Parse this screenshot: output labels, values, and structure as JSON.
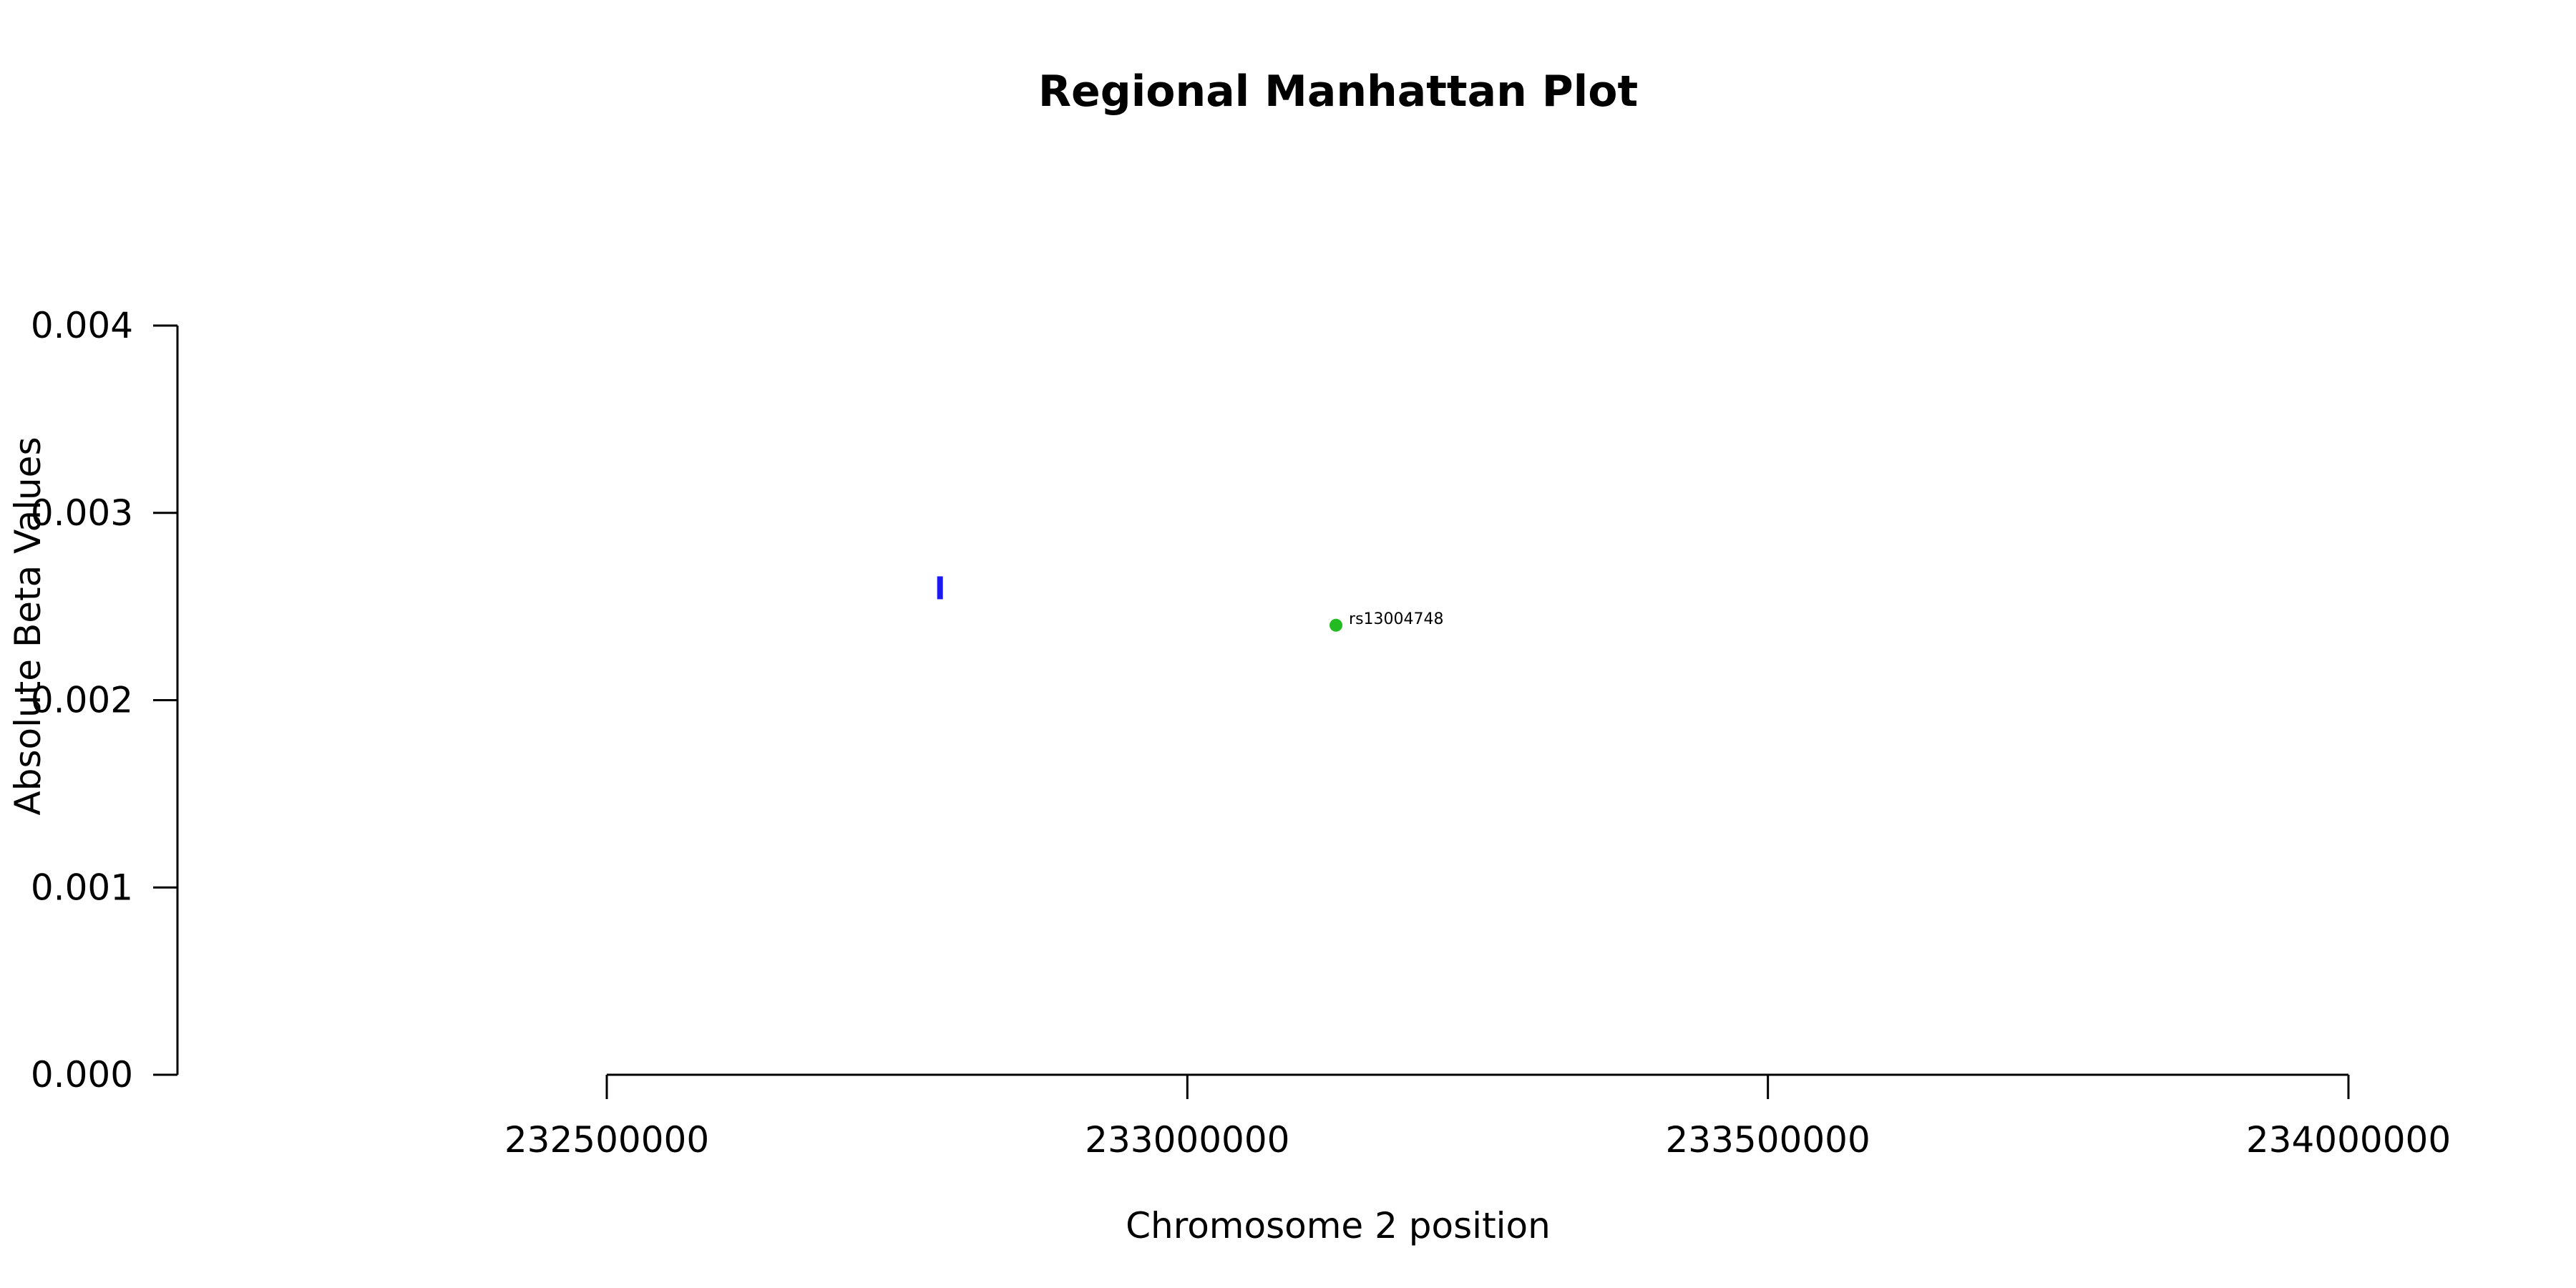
{
  "chart_data": {
    "type": "scatter",
    "title": "Regional Manhattan Plot",
    "xlabel": "Chromosome 2 position",
    "ylabel": "Absolute Beta Values",
    "xlim": [
      232500000,
      234000000
    ],
    "ylim": [
      0,
      0.004
    ],
    "x_ticks": [
      232500000,
      233000000,
      233500000,
      234000000
    ],
    "x_tick_labels": [
      "232500000",
      "233000000",
      "233500000",
      "234000000"
    ],
    "y_ticks": [
      0,
      0.001,
      0.002,
      0.003,
      0.004
    ],
    "y_tick_labels": [
      "0.000",
      "0.001",
      "0.002",
      "0.003",
      "0.004"
    ],
    "grid": false,
    "series": [
      {
        "marker": "bar",
        "color": "#1a1aee",
        "points": [
          {
            "x": 232787000,
            "y": 0.0026
          }
        ]
      },
      {
        "marker": "circle",
        "color": "#22bb22",
        "points": [
          {
            "x": 233128000,
            "y": 0.0024,
            "label": "rs13004748"
          }
        ]
      }
    ]
  }
}
